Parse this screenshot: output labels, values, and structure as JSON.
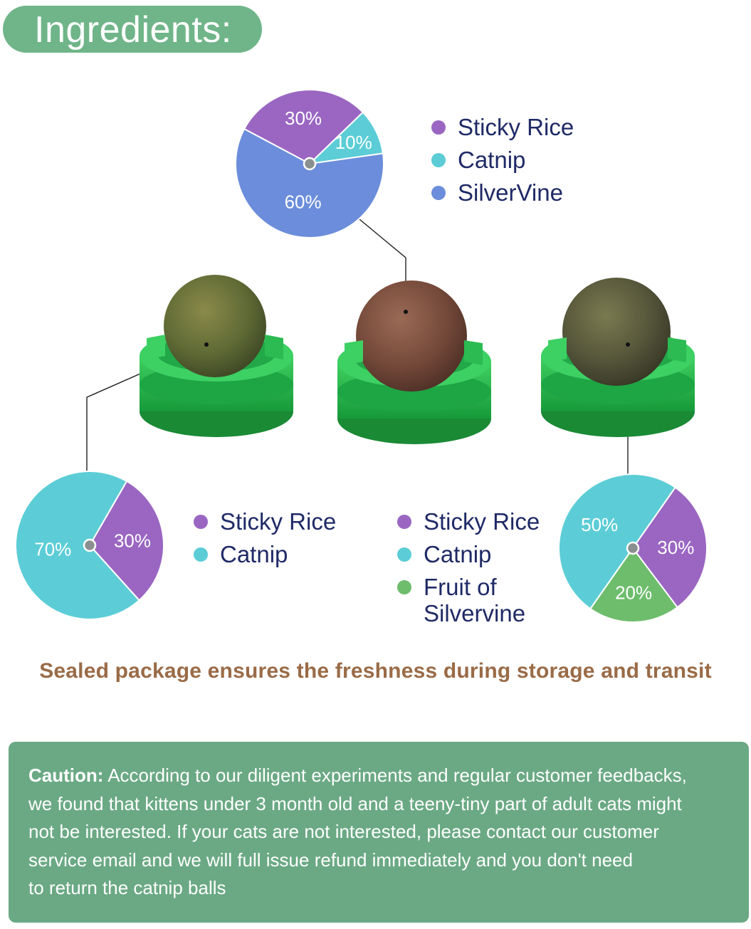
{
  "header": {
    "title": "Ingredients:"
  },
  "colors": {
    "sticky_rice": "#9a66c2",
    "catnip": "#5ccdd6",
    "silvervine": "#6b8ddb",
    "fruit_of_silvervine": "#6dbd6d",
    "title_pill": "#6fb589",
    "caution_bg": "#6aa984",
    "tagline": "#9a6b47",
    "legend_text": "#1f2a66"
  },
  "chart_data": [
    {
      "type": "pie",
      "title": "",
      "slices": [
        {
          "label": "Sticky Rice",
          "value": 30,
          "display": "30%"
        },
        {
          "label": "Catnip",
          "value": 10,
          "display": "10%"
        },
        {
          "label": "SilverVine",
          "value": 60,
          "display": "60%"
        }
      ]
    },
    {
      "type": "pie",
      "title": "",
      "slices": [
        {
          "label": "Sticky Rice",
          "value": 30,
          "display": "30%"
        },
        {
          "label": "Catnip",
          "value": 70,
          "display": "70%"
        }
      ]
    },
    {
      "type": "pie",
      "title": "",
      "slices": [
        {
          "label": "Catnip",
          "value": 50,
          "display": "50%"
        },
        {
          "label": "Sticky Rice",
          "value": 30,
          "display": "30%"
        },
        {
          "label": "Fruit of Silvervine",
          "value": 20,
          "display": "20%"
        }
      ]
    }
  ],
  "legends": {
    "top": [
      "Sticky Rice",
      "Catnip",
      "SilverVine"
    ],
    "left": [
      "Sticky Rice",
      "Catnip"
    ],
    "right": [
      "Sticky Rice",
      "Catnip",
      "Fruit of Silvervine"
    ]
  },
  "right_legend_fruit_lines": [
    "Fruit of",
    "Silvervine"
  ],
  "tagline": "Sealed package ensures the freshness during storage and transit",
  "caution": {
    "label": "Caution:",
    "lines": [
      " According to our diligent experiments and regular customer feedbacks,",
      "we found that kittens under 3 month old and a teeny-tiny part of adult cats might",
      "not be interested. If your cats are not interested, please contact our customer",
      "service email and we will full issue refund immediately and you don't need",
      "to return the catnip balls"
    ]
  }
}
